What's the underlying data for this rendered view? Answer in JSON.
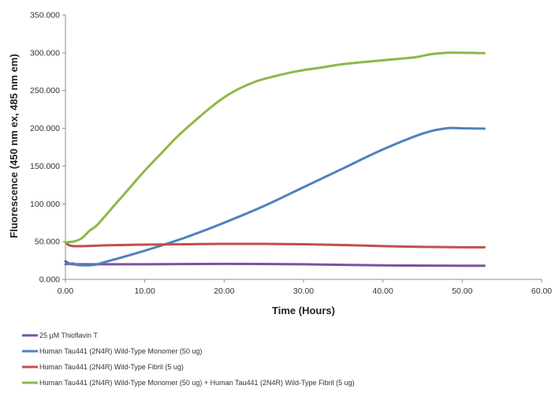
{
  "chart_data": {
    "type": "line",
    "xlabel": "Time (Hours)",
    "ylabel": "Fluorescence (450 nm ex, 485 nm em)",
    "xlim": [
      0,
      60
    ],
    "ylim": [
      0,
      350000
    ],
    "x_ticks": [
      0,
      10,
      20,
      30,
      40,
      50,
      60
    ],
    "x_tick_labels": [
      "0.00",
      "10.00",
      "20.00",
      "30.00",
      "40.00",
      "50.00",
      "60.00"
    ],
    "y_ticks": [
      0,
      50000,
      100000,
      150000,
      200000,
      250000,
      300000,
      350000
    ],
    "y_tick_labels": [
      "0.000",
      "50.000",
      "100.000",
      "150.000",
      "200.000",
      "250.000",
      "300.000",
      "350.000"
    ],
    "grid": false,
    "legend_position": "bottom",
    "series": [
      {
        "name": "25 µM Thioflavin T",
        "color": "#7B52A0",
        "points": [
          [
            0,
            24000
          ],
          [
            0.5,
            21000
          ],
          [
            1,
            20000
          ],
          [
            5,
            20000
          ],
          [
            10,
            20000
          ],
          [
            20,
            20500
          ],
          [
            30,
            20000
          ],
          [
            40,
            18500
          ],
          [
            50,
            18000
          ],
          [
            52.8,
            18000
          ]
        ]
      },
      {
        "name": "Human Tau441 (2N4R) Wild-Type Monomer (50 ug)",
        "color": "#4F81BD",
        "points": [
          [
            0,
            20000
          ],
          [
            1,
            21000
          ],
          [
            1.5,
            19000
          ],
          [
            3.5,
            19000
          ],
          [
            5,
            23000
          ],
          [
            10,
            38000
          ],
          [
            15,
            55000
          ],
          [
            20,
            75000
          ],
          [
            25,
            97000
          ],
          [
            30,
            122000
          ],
          [
            35,
            147000
          ],
          [
            40,
            172000
          ],
          [
            45,
            193000
          ],
          [
            48,
            200000
          ],
          [
            50,
            200000
          ],
          [
            52.8,
            199500
          ]
        ]
      },
      {
        "name": "Human Tau441 (2N4R) Wild-Type Fibril (5 ug)",
        "color": "#C0504D",
        "points": [
          [
            0,
            49000
          ],
          [
            1,
            44000
          ],
          [
            5,
            45000
          ],
          [
            10,
            46000
          ],
          [
            15,
            46500
          ],
          [
            20,
            47000
          ],
          [
            25,
            47000
          ],
          [
            30,
            46500
          ],
          [
            35,
            45500
          ],
          [
            40,
            44000
          ],
          [
            45,
            43000
          ],
          [
            50,
            42500
          ],
          [
            52.8,
            42500
          ]
        ]
      },
      {
        "name": "Human Tau441 (2N4R) Wild-Type Monomer (50 ug) + Human Tau441 (2N4R) Wild-Type Fibril (5 ug)",
        "color": "#8DB849",
        "points": [
          [
            0,
            49000
          ],
          [
            1,
            50000
          ],
          [
            2,
            54000
          ],
          [
            3,
            64000
          ],
          [
            4,
            72000
          ],
          [
            6,
            96000
          ],
          [
            8,
            120000
          ],
          [
            10,
            144000
          ],
          [
            12,
            166000
          ],
          [
            14,
            188000
          ],
          [
            16,
            207000
          ],
          [
            18,
            225000
          ],
          [
            20,
            241000
          ],
          [
            22,
            253000
          ],
          [
            24,
            262000
          ],
          [
            26,
            268000
          ],
          [
            28,
            273000
          ],
          [
            30,
            277000
          ],
          [
            32,
            280000
          ],
          [
            35,
            285000
          ],
          [
            40,
            290000
          ],
          [
            44,
            294000
          ],
          [
            46,
            298000
          ],
          [
            48,
            300000
          ],
          [
            50,
            300000
          ],
          [
            52.8,
            299500
          ]
        ]
      }
    ]
  }
}
